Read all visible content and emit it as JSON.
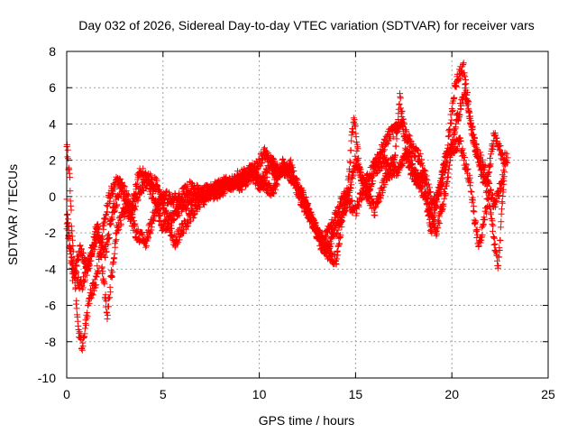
{
  "chart_data": {
    "type": "scatter",
    "title": "Day 032 of 2026, Sidereal Day-to-day VTEC variation (SDTVAR) for receiver vars",
    "xlabel": "GPS time / hours",
    "ylabel": "SDTVAR / TECUs",
    "xlim": [
      0,
      25
    ],
    "ylim": [
      -10,
      8
    ],
    "xticks": [
      0,
      5,
      10,
      15,
      20,
      25
    ],
    "yticks": [
      -10,
      -8,
      -6,
      -4,
      -2,
      0,
      2,
      4,
      6,
      8
    ],
    "grid": true,
    "marker": "+",
    "series": [
      {
        "name": "SDTVAR",
        "color": "#ff0000",
        "anchors": [
          {
            "x": [
              0.0,
              0.15,
              0.3,
              0.45,
              0.6,
              0.8,
              1.0,
              1.2,
              1.5,
              1.8,
              2.0,
              2.3,
              2.7,
              3.0,
              3.4,
              3.8,
              4.2,
              4.6,
              5.0,
              5.4,
              5.8,
              6.3,
              7.0,
              7.8,
              8.5,
              9.2,
              9.8,
              10.3,
              10.8,
              11.3,
              11.8,
              12.3,
              12.8,
              13.2,
              13.6,
              14.0,
              14.3,
              14.6,
              14.9,
              15.2,
              15.6,
              16.0,
              16.5,
              17.0,
              17.3,
              17.7,
              18.1,
              18.6,
              19.0,
              19.4,
              19.8,
              20.2,
              20.6,
              21.0,
              21.4,
              21.8,
              22.2,
              22.6,
              22.9
            ],
            "y": [
              3.0,
              1.0,
              -2.5,
              -5.0,
              -7.5,
              -8.2,
              -7.0,
              -5.5,
              -4.8,
              -2.5,
              -1.0,
              0.3,
              1.0,
              0.2,
              -0.4,
              1.5,
              0.8,
              -0.3,
              -1.8,
              -1.2,
              -0.8,
              -0.3,
              0.2,
              0.5,
              0.7,
              1.0,
              1.6,
              2.4,
              1.2,
              1.5,
              1.0,
              0.0,
              -1.5,
              -2.6,
              -3.2,
              -3.6,
              -1.2,
              0.5,
              4.5,
              1.5,
              0.0,
              1.5,
              2.0,
              1.8,
              5.5,
              2.0,
              0.8,
              1.2,
              -0.5,
              0.5,
              3.0,
              6.3,
              7.2,
              3.8,
              1.8,
              0.5,
              3.5,
              2.2,
              2.0
            ]
          },
          {
            "x": [
              0.0,
              0.2,
              0.5,
              0.8,
              1.2,
              1.6,
              2.0,
              2.4,
              2.8,
              3.3,
              3.8,
              4.3,
              4.8,
              5.2,
              5.6,
              6.2,
              6.8,
              7.5,
              8.2,
              9.0,
              9.6,
              10.2,
              10.7,
              11.2,
              11.8,
              12.4,
              13.0,
              13.5,
              14.0,
              14.5,
              15.0,
              15.5,
              16.0,
              16.6,
              17.2,
              17.7,
              18.2,
              18.7,
              19.2,
              19.7,
              20.2,
              20.7,
              21.2,
              21.7,
              22.2,
              22.7
            ],
            "y": [
              -1.5,
              -3.0,
              -4.5,
              -5.0,
              -3.5,
              -2.0,
              -3.2,
              -0.8,
              0.5,
              -1.0,
              0.3,
              1.0,
              0.5,
              -1.2,
              -2.5,
              -1.5,
              -0.5,
              0.3,
              0.8,
              0.6,
              1.2,
              0.8,
              0.2,
              1.8,
              0.8,
              -0.5,
              -2.0,
              -2.8,
              -1.8,
              -0.5,
              2.0,
              0.5,
              -0.8,
              1.2,
              1.5,
              2.5,
              1.0,
              -0.2,
              -2.0,
              0.5,
              4.0,
              5.8,
              2.8,
              1.5,
              -0.5,
              1.2
            ]
          },
          {
            "x": [
              0.0,
              0.3,
              0.7,
              1.1,
              1.6,
              2.1,
              2.6,
              3.1,
              3.6,
              4.1,
              4.6,
              5.1,
              5.7,
              6.4,
              7.2,
              8.0,
              8.8,
              9.5,
              10.1,
              10.6,
              11.1,
              11.6,
              12.1,
              12.7,
              13.3,
              13.8,
              14.4,
              15.0,
              15.6,
              16.2,
              16.8,
              17.4,
              17.9,
              18.4,
              18.9,
              19.4,
              19.9,
              20.4,
              20.9,
              21.4,
              21.9,
              22.4,
              22.8
            ],
            "y": [
              -0.5,
              -4.5,
              -3.0,
              -4.0,
              -1.5,
              -6.5,
              -1.8,
              -0.5,
              -2.0,
              -2.5,
              -0.8,
              0.0,
              -0.2,
              0.5,
              0.0,
              0.3,
              1.0,
              1.5,
              0.5,
              2.0,
              1.2,
              1.8,
              0.0,
              -1.2,
              -2.5,
              -1.5,
              0.0,
              -0.8,
              1.0,
              2.2,
              3.5,
              4.0,
              2.8,
              2.0,
              -2.0,
              0.8,
              2.5,
              3.0,
              1.0,
              -2.8,
              0.0,
              -4.0,
              2.5
            ]
          }
        ]
      }
    ]
  }
}
